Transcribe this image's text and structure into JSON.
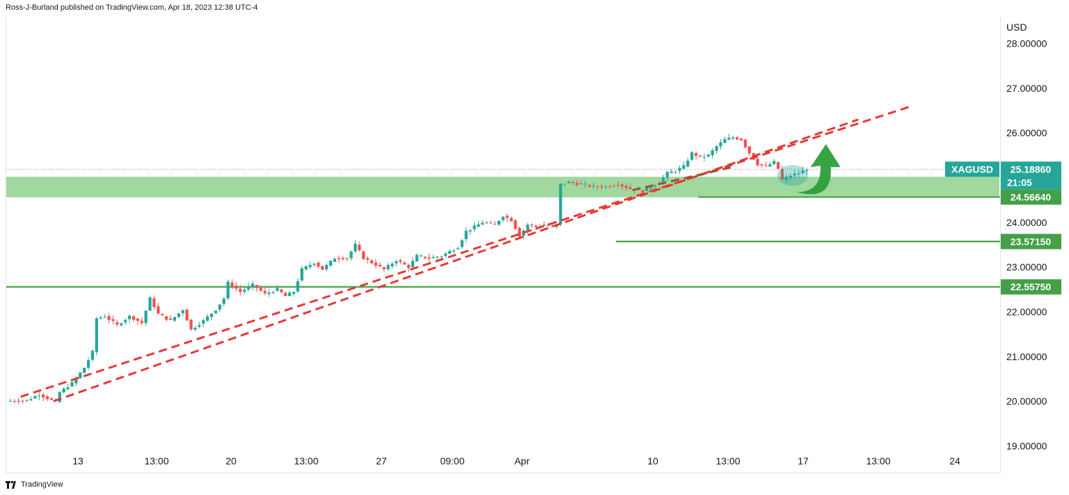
{
  "header": {
    "attribution": "Ross-J-Burland published on TradingView.com, Apr 18, 2023 12:38 UTC-4"
  },
  "footer": {
    "brand": "TradingView",
    "logo_icon": "tradingview-logo-icon"
  },
  "colors": {
    "up": "#26a69a",
    "down": "#ef5350",
    "zone": "#8fd18f",
    "level": "#43a047",
    "trend": "#e53935",
    "price_tag": "#26a69a",
    "arrow": "#2e9e3a"
  },
  "chart_data": {
    "type": "candlestick",
    "symbol": "XAGUSD",
    "currency": "USD",
    "y_ticks": [
      19,
      20,
      21,
      22,
      23,
      24,
      25,
      26,
      27,
      28
    ],
    "y_tick_labels": [
      "19.00000",
      "20.00000",
      "21.00000",
      "22.00000",
      "23.00000",
      "24.00000",
      "25.00000",
      "26.00000",
      "27.00000",
      "28.00000"
    ],
    "ylim": [
      18.4,
      28.6
    ],
    "x_labels": [
      "13",
      "13:00",
      "20",
      "13:00",
      "27",
      "09:00",
      "Apr",
      "10",
      "13:00",
      "17",
      "13:00",
      "24"
    ],
    "current_price": {
      "value": "25.18860",
      "countdown": "21:05",
      "y": 25.1886
    },
    "levels": [
      {
        "label": "24.56640",
        "value": 24.5664
      },
      {
        "label": "23.57150",
        "value": 23.5715
      },
      {
        "label": "22.55750",
        "value": 22.5575
      }
    ],
    "zone": {
      "from": 24.56,
      "to": 25.02
    },
    "price_path": [
      [
        0,
        20.0
      ],
      [
        5,
        20.02
      ],
      [
        8,
        20.15
      ],
      [
        12,
        19.98
      ],
      [
        13,
        20.2
      ],
      [
        16,
        20.4
      ],
      [
        19,
        20.75
      ],
      [
        21,
        21.1
      ],
      [
        22,
        21.85
      ],
      [
        24,
        21.9
      ],
      [
        27,
        21.7
      ],
      [
        30,
        21.9
      ],
      [
        33,
        21.75
      ],
      [
        35,
        22.3
      ],
      [
        37,
        21.95
      ],
      [
        40,
        21.8
      ],
      [
        43,
        22.05
      ],
      [
        45,
        21.6
      ],
      [
        48,
        21.8
      ],
      [
        51,
        22.05
      ],
      [
        53,
        22.3
      ],
      [
        54,
        22.65
      ],
      [
        57,
        22.45
      ],
      [
        60,
        22.6
      ],
      [
        63,
        22.4
      ],
      [
        66,
        22.5
      ],
      [
        68,
        22.35
      ],
      [
        70,
        22.45
      ],
      [
        72,
        22.95
      ],
      [
        75,
        23.1
      ],
      [
        77,
        22.95
      ],
      [
        80,
        23.2
      ],
      [
        83,
        23.2
      ],
      [
        85,
        23.5
      ],
      [
        87,
        23.2
      ],
      [
        90,
        23.05
      ],
      [
        92,
        22.95
      ],
      [
        95,
        23.15
      ],
      [
        98,
        23.0
      ],
      [
        100,
        23.25
      ],
      [
        103,
        23.2
      ],
      [
        106,
        23.25
      ],
      [
        108,
        23.35
      ],
      [
        110,
        23.45
      ],
      [
        112,
        23.8
      ],
      [
        114,
        23.9
      ],
      [
        116,
        24.0
      ],
      [
        119,
        23.95
      ],
      [
        121,
        24.15
      ],
      [
        123,
        24.05
      ],
      [
        125,
        23.7
      ],
      [
        127,
        23.95
      ],
      [
        129,
        23.9
      ],
      [
        131,
        23.95
      ],
      [
        133,
        23.9
      ],
      [
        134,
        23.95
      ],
      [
        135,
        24.85
      ],
      [
        137,
        24.9
      ],
      [
        140,
        24.85
      ],
      [
        143,
        24.8
      ],
      [
        146,
        24.8
      ],
      [
        149,
        24.85
      ],
      [
        152,
        24.75
      ],
      [
        155,
        24.7
      ],
      [
        157,
        24.8
      ],
      [
        159,
        24.9
      ],
      [
        161,
        25.1
      ],
      [
        163,
        25.15
      ],
      [
        165,
        25.25
      ],
      [
        167,
        25.55
      ],
      [
        169,
        25.45
      ],
      [
        171,
        25.5
      ],
      [
        173,
        25.7
      ],
      [
        175,
        25.85
      ],
      [
        177,
        25.9
      ],
      [
        179,
        25.85
      ],
      [
        181,
        25.55
      ],
      [
        183,
        25.3
      ],
      [
        185,
        25.25
      ],
      [
        187,
        25.35
      ],
      [
        188,
        25.2
      ],
      [
        189,
        24.95
      ],
      [
        191,
        25.05
      ],
      [
        193,
        25.1
      ],
      [
        195,
        25.19
      ]
    ],
    "price_range_x": [
      0,
      195
    ],
    "x_bounds": [
      0,
      228
    ],
    "trendlines": [
      {
        "from": [
          11,
          20.0
        ],
        "to": [
          207,
          26.3
        ]
      },
      {
        "from": [
          3,
          20.1
        ],
        "to": [
          220,
          26.6
        ]
      },
      {
        "from": [
          152,
          24.72
        ],
        "to": [
          177,
          25.25
        ]
      }
    ]
  }
}
